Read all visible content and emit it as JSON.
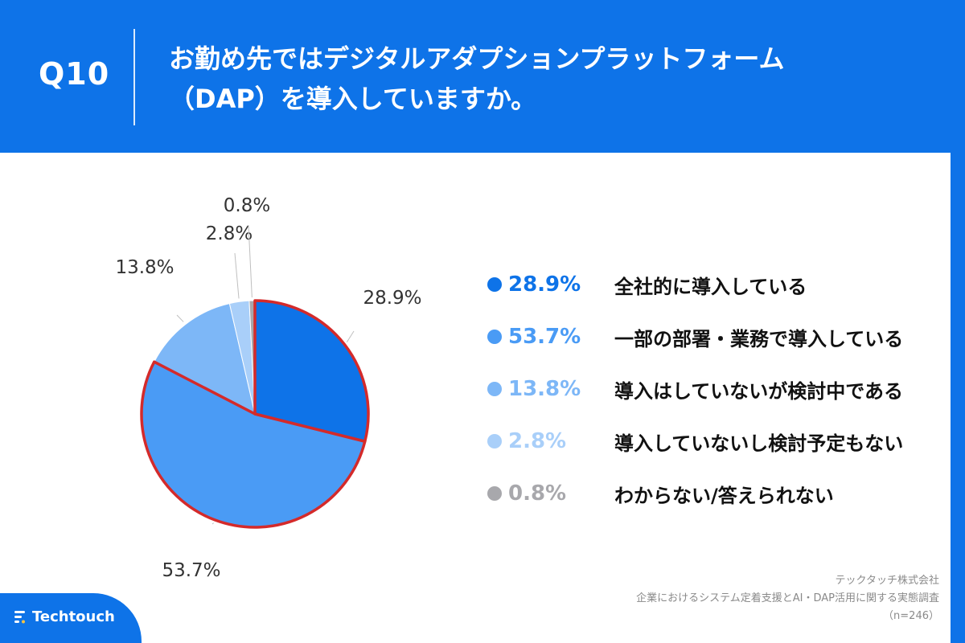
{
  "header": {
    "q_label": "Q10",
    "title_line1": "お勤め先ではデジタルアダプションプラットフォーム",
    "title_line2": "（DAP）を導入していますか。"
  },
  "chart_data": {
    "type": "pie",
    "title": "お勤め先ではデジタルアダプションプラットフォーム（DAP）を導入していますか。",
    "slices": [
      {
        "label": "全社的に導入している",
        "value": 28.9,
        "display": "28.9%",
        "color": "#0E73E8",
        "highlight": true
      },
      {
        "label": "一部の部署・業務で導入している",
        "value": 53.7,
        "display": "53.7%",
        "color": "#4A9BF5",
        "highlight": true
      },
      {
        "label": "導入はしていないが検討中である",
        "value": 13.8,
        "display": "13.8%",
        "color": "#7DB7F7",
        "highlight": false
      },
      {
        "label": "導入していないし検討予定もない",
        "value": 2.8,
        "display": "2.8%",
        "color": "#A9CFF9",
        "highlight": false
      },
      {
        "label": "わからない/答えられない",
        "value": 0.8,
        "display": "0.8%",
        "color": "#A8A8AC",
        "highlight": false
      }
    ],
    "highlight_color": "#D42A2A",
    "legend_position": "right"
  },
  "footer": {
    "company": "テックタッチ株式会社",
    "survey": "企業におけるシステム定着支援とAI・DAP活用に関する実態調査",
    "sample": "（n=246）"
  },
  "brand": {
    "name": "Techtouch",
    "icon": "techtouch-logo-icon"
  }
}
